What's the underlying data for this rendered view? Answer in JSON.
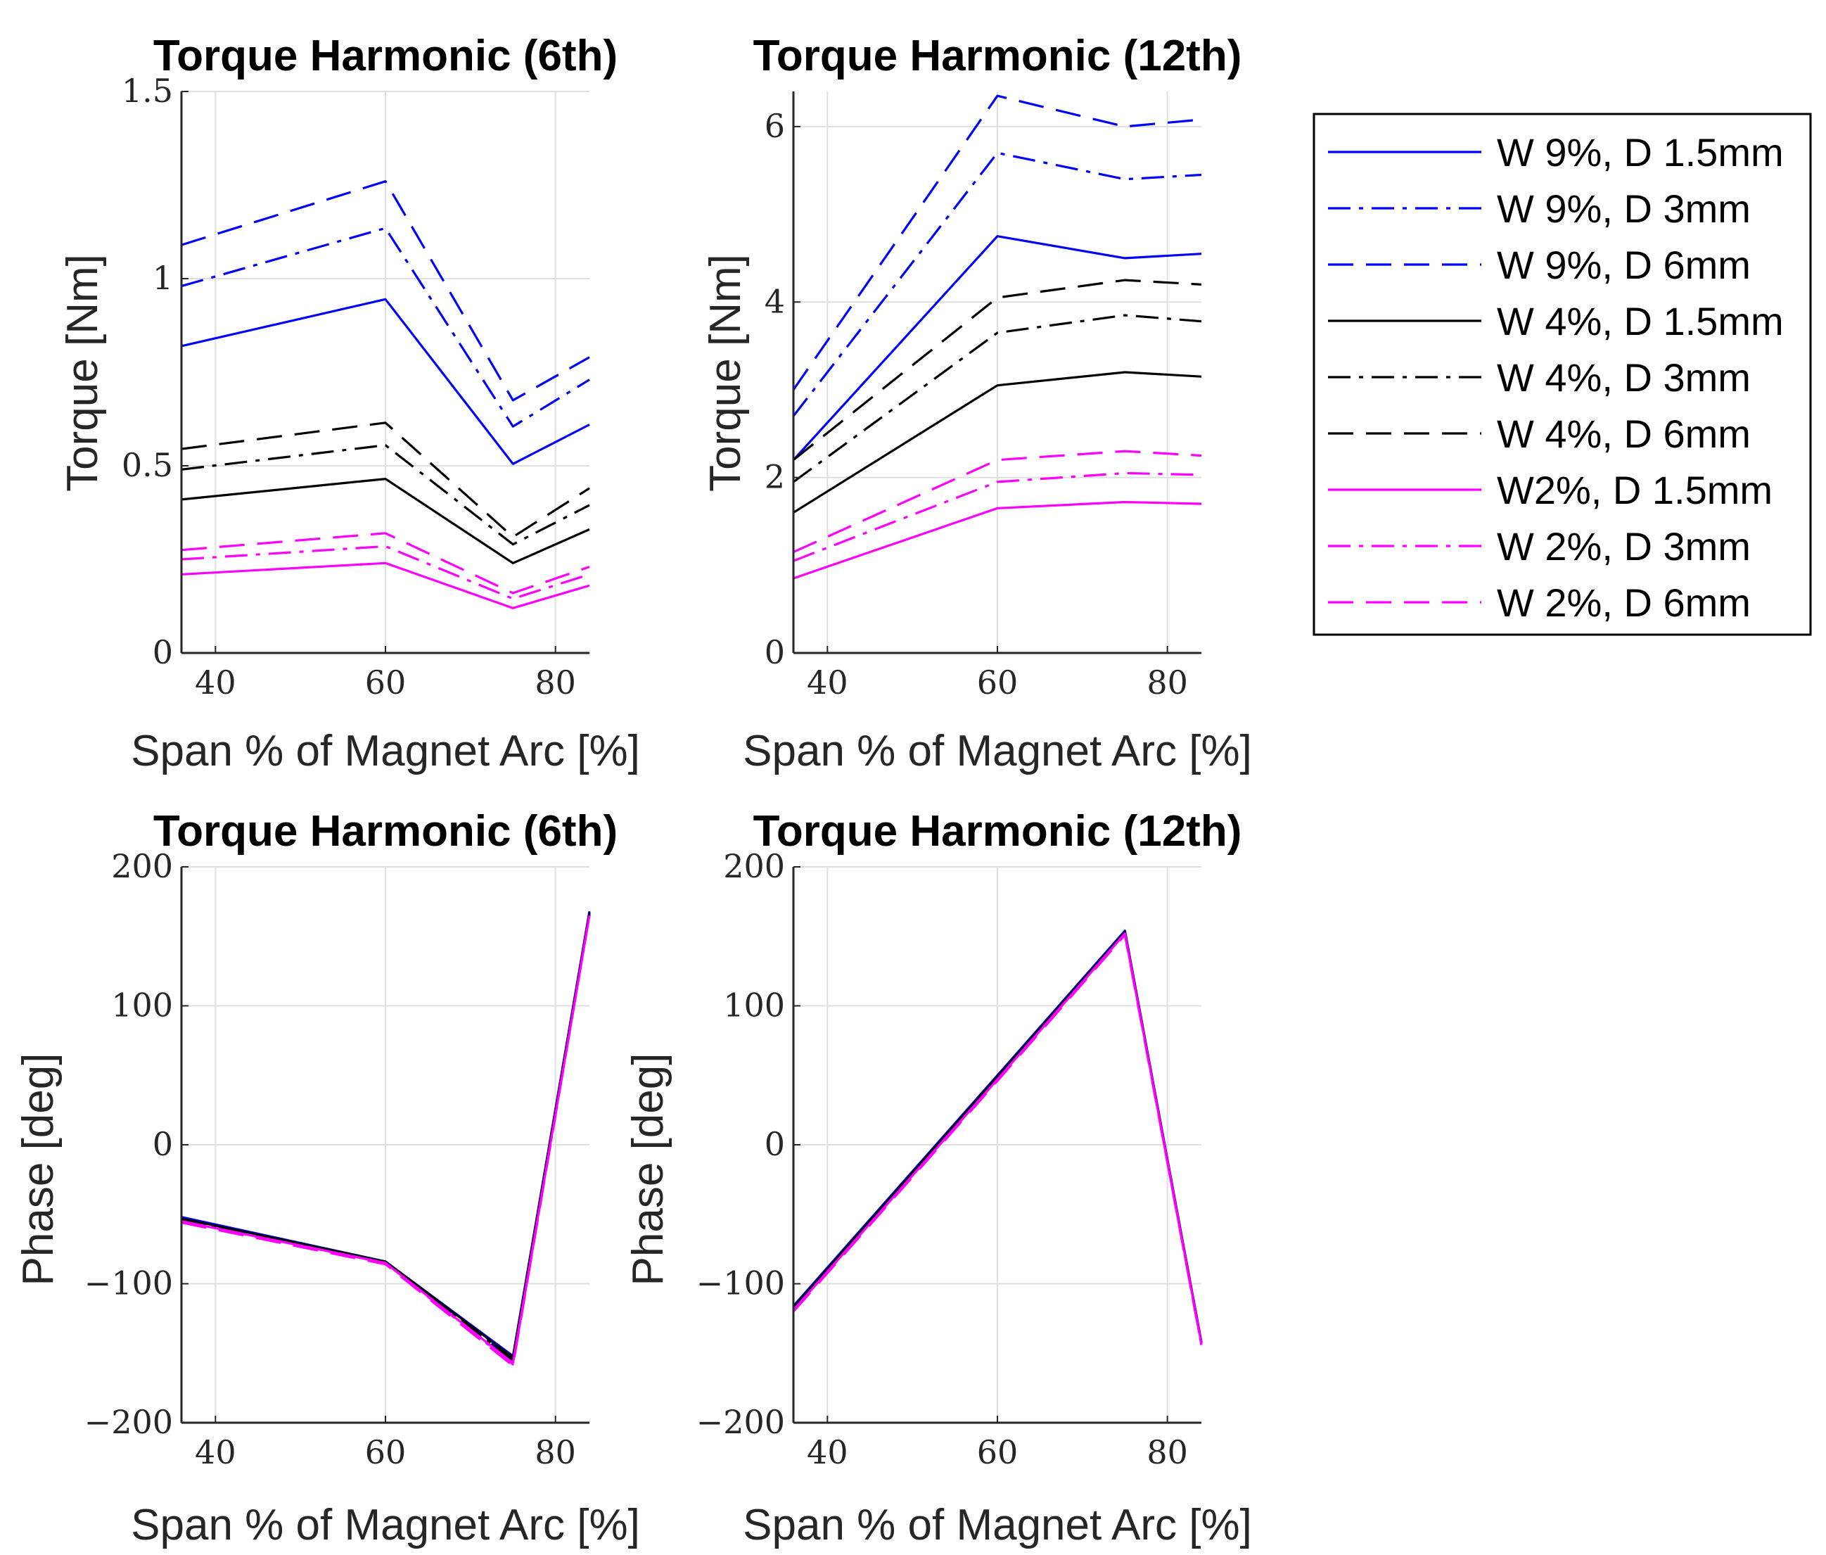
{
  "chart_data": [
    {
      "type": "line",
      "id": "mag6",
      "title": "Torque Harmonic (6th)",
      "xlabel": "Span % of Magnet Arc [%]",
      "ylabel": "Torque [Nm]",
      "xlim": [
        36,
        84
      ],
      "ylim": [
        0,
        1.5
      ],
      "xticks": [
        40,
        60,
        80
      ],
      "yticks": [
        0,
        0.5,
        1,
        1.5
      ],
      "ytick_labels": [
        "0",
        "0.5",
        "1",
        "1.5"
      ],
      "x": [
        36,
        60,
        75,
        84
      ],
      "series": [
        {
          "name": "W 9%, D 1.5mm",
          "values": [
            0.82,
            0.945,
            0.505,
            0.61
          ]
        },
        {
          "name": "W 9%, D 3mm",
          "values": [
            0.98,
            1.135,
            0.605,
            0.73
          ]
        },
        {
          "name": "W 9%, D 6mm",
          "values": [
            1.09,
            1.26,
            0.675,
            0.79
          ]
        },
        {
          "name": "W 4%, D 1.5mm",
          "values": [
            0.41,
            0.465,
            0.24,
            0.33
          ]
        },
        {
          "name": "W 4%, D 3mm",
          "values": [
            0.49,
            0.555,
            0.29,
            0.395
          ]
        },
        {
          "name": "W 4%, D 6mm",
          "values": [
            0.545,
            0.615,
            0.31,
            0.44
          ]
        },
        {
          "name": "W2%, D 1.5mm",
          "values": [
            0.21,
            0.24,
            0.12,
            0.18
          ]
        },
        {
          "name": "W 2%, D 3mm",
          "values": [
            0.25,
            0.285,
            0.145,
            0.21
          ]
        },
        {
          "name": "W 2%, D 6mm",
          "values": [
            0.275,
            0.32,
            0.16,
            0.23
          ]
        }
      ]
    },
    {
      "type": "line",
      "id": "mag12",
      "title": "Torque Harmonic (12th)",
      "xlabel": "Span % of Magnet Arc [%]",
      "ylabel": "Torque [Nm]",
      "xlim": [
        36,
        84
      ],
      "ylim": [
        0,
        6.4
      ],
      "xticks": [
        40,
        60,
        80
      ],
      "yticks": [
        0,
        2,
        4,
        6
      ],
      "ytick_labels": [
        "0",
        "2",
        "4",
        "6"
      ],
      "x": [
        36,
        60,
        75,
        84
      ],
      "series": [
        {
          "name": "W 9%, D 1.5mm",
          "values": [
            2.2,
            4.75,
            4.5,
            4.55
          ]
        },
        {
          "name": "W 9%, D 3mm",
          "values": [
            2.7,
            5.7,
            5.4,
            5.45
          ]
        },
        {
          "name": "W 9%, D 6mm",
          "values": [
            3.0,
            6.35,
            6.0,
            6.08
          ]
        },
        {
          "name": "W 4%, D 1.5mm",
          "values": [
            1.6,
            3.05,
            3.2,
            3.15
          ]
        },
        {
          "name": "W 4%, D 3mm",
          "values": [
            1.95,
            3.65,
            3.85,
            3.78
          ]
        },
        {
          "name": "W 4%, D 6mm",
          "values": [
            2.2,
            4.05,
            4.25,
            4.2
          ]
        },
        {
          "name": "W2%, D 1.5mm",
          "values": [
            0.85,
            1.65,
            1.72,
            1.7
          ]
        },
        {
          "name": "W 2%, D 3mm",
          "values": [
            1.05,
            1.95,
            2.05,
            2.03
          ]
        },
        {
          "name": "W 2%, D 6mm",
          "values": [
            1.15,
            2.2,
            2.3,
            2.25
          ]
        }
      ]
    },
    {
      "type": "line",
      "id": "phase6",
      "title": "Torque Harmonic (6th)",
      "xlabel": "Span % of Magnet Arc [%]",
      "ylabel": "Phase [deg]",
      "xlim": [
        36,
        84
      ],
      "ylim": [
        -200,
        200
      ],
      "xticks": [
        40,
        60,
        80
      ],
      "yticks": [
        -200,
        -100,
        0,
        100,
        200
      ],
      "ytick_labels": [
        "−200",
        "−100",
        "0",
        "100",
        "200"
      ],
      "x": [
        36,
        60,
        75,
        84
      ],
      "series": [
        {
          "name": "W 9%, D 1.5mm",
          "values": [
            -52,
            -84,
            -152,
            168
          ]
        },
        {
          "name": "W 9%, D 3mm",
          "values": [
            -53,
            -84,
            -154,
            167
          ]
        },
        {
          "name": "W 9%, D 6mm",
          "values": [
            -53,
            -85,
            -155,
            167
          ]
        },
        {
          "name": "W 4%, D 1.5mm",
          "values": [
            -53,
            -84,
            -153,
            167
          ]
        },
        {
          "name": "W 4%, D 3mm",
          "values": [
            -54,
            -85,
            -155,
            166
          ]
        },
        {
          "name": "W 4%, D 6mm",
          "values": [
            -54,
            -85,
            -156,
            166
          ]
        },
        {
          "name": "W2%, D 1.5mm",
          "values": [
            -55,
            -85,
            -157,
            165
          ]
        },
        {
          "name": "W 2%, D 3mm",
          "values": [
            -55,
            -85,
            -158,
            165
          ]
        },
        {
          "name": "W 2%, D 6mm",
          "values": [
            -56,
            -86,
            -159,
            165
          ]
        }
      ]
    },
    {
      "type": "line",
      "id": "phase12",
      "title": "Torque Harmonic (12th)",
      "xlabel": "Span % of Magnet Arc [%]",
      "ylabel": "Phase [deg]",
      "xlim": [
        36,
        84
      ],
      "ylim": [
        -200,
        200
      ],
      "xticks": [
        40,
        60,
        80
      ],
      "yticks": [
        -200,
        -100,
        0,
        100,
        200
      ],
      "ytick_labels": [
        "−200",
        "−100",
        "0",
        "100",
        "200"
      ],
      "x": [
        36,
        60,
        75,
        84
      ],
      "series": [
        {
          "name": "W 9%, D 1.5mm",
          "values": [
            -116,
            50,
            154,
            -142
          ]
        },
        {
          "name": "W 9%, D 3mm",
          "values": [
            -117,
            49,
            153,
            -142
          ]
        },
        {
          "name": "W 9%, D 6mm",
          "values": [
            -117,
            49,
            153,
            -143
          ]
        },
        {
          "name": "W 4%, D 1.5mm",
          "values": [
            -117,
            49,
            153,
            -142
          ]
        },
        {
          "name": "W 4%, D 3mm",
          "values": [
            -118,
            48,
            153,
            -143
          ]
        },
        {
          "name": "W 4%, D 6mm",
          "values": [
            -118,
            48,
            152,
            -143
          ]
        },
        {
          "name": "W2%, D 1.5mm",
          "values": [
            -119,
            47,
            152,
            -143
          ]
        },
        {
          "name": "W 2%, D 3mm",
          "values": [
            -119,
            47,
            152,
            -144
          ]
        },
        {
          "name": "W 2%, D 6mm",
          "values": [
            -120,
            46,
            151,
            -144
          ]
        }
      ]
    }
  ],
  "legend": {
    "placement": "right",
    "entries": [
      {
        "label": "W 9%, D 1.5mm",
        "color": "#0000ff",
        "style": "solid"
      },
      {
        "label": "W 9%, D 3mm",
        "color": "#0000ff",
        "style": "dashdot"
      },
      {
        "label": "W 9%, D 6mm",
        "color": "#0000ff",
        "style": "dashed"
      },
      {
        "label": "W 4%, D 1.5mm",
        "color": "#000000",
        "style": "solid"
      },
      {
        "label": "W 4%, D 3mm",
        "color": "#000000",
        "style": "dashdot"
      },
      {
        "label": "W 4%, D 6mm",
        "color": "#000000",
        "style": "dashed"
      },
      {
        "label": "W2%, D 1.5mm",
        "color": "#ff00ff",
        "style": "solid"
      },
      {
        "label": "W 2%, D 3mm",
        "color": "#ff00ff",
        "style": "dashdot"
      },
      {
        "label": "W 2%, D 6mm",
        "color": "#ff00ff",
        "style": "dashed"
      }
    ]
  }
}
